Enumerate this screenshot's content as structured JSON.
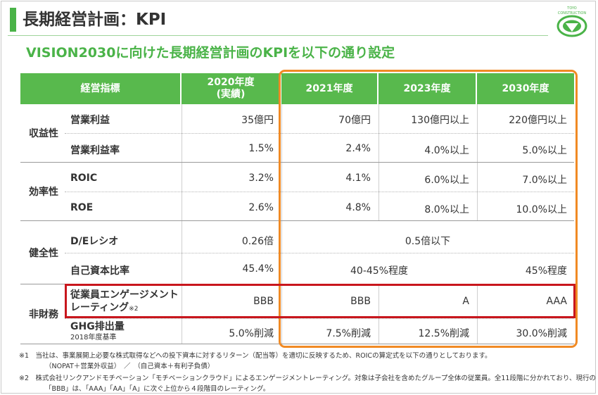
{
  "header": {
    "title": "長期経営計画：KPI",
    "logo_text": "TOYO CONSTRUCTION"
  },
  "subtitle": "VISION2030に向けた長期経営計画のKPIを以下の通り設定",
  "colors": {
    "green": "#58b94d",
    "orange": "#f08a24",
    "red": "#c8161d"
  },
  "table": {
    "headers": {
      "indicator": "経営指標",
      "y2020_line1": "2020年度",
      "y2020_line2": "(実績)",
      "y2021": "2021年度",
      "y2023": "2023年度",
      "y2030": "2030年度"
    },
    "categories": {
      "profitability": "収益性",
      "efficiency": "効率性",
      "soundness": "健全性",
      "nonfinancial": "非財務"
    },
    "rows": {
      "operating_profit": {
        "label": "営業利益",
        "y2020": "35億円",
        "y2021": "70億円",
        "y2023": "130億円以上",
        "y2030": "220億円以上"
      },
      "operating_margin": {
        "label": "営業利益率",
        "y2020": "1.5%",
        "y2021": "2.4%",
        "y2023": "4.0%以上",
        "y2030": "5.0%以上"
      },
      "roic": {
        "label": "ROIC",
        "y2020": "3.2%",
        "y2021": "4.1%",
        "y2023": "6.0%以上",
        "y2030": "7.0%以上"
      },
      "roe": {
        "label": "ROE",
        "y2020": "2.6%",
        "y2021": "4.8%",
        "y2023": "8.0%以上",
        "y2030": "10.0%以上"
      },
      "de_ratio": {
        "label": "D/Eレシオ",
        "y2020": "0.26倍",
        "future": "0.5倍以下"
      },
      "equity_ratio": {
        "label": "自己資本比率",
        "y2020": "45.4%",
        "y2021_2023": "40-45%程度",
        "y2030": "45%程度"
      },
      "engagement": {
        "label_line1": "従業員エンゲージメント",
        "label_line2": "レーティング",
        "label_sup": "※2",
        "y2020": "BBB",
        "y2021": "BBB",
        "y2023": "A",
        "y2030": "AAA"
      },
      "ghg": {
        "label": "GHG排出量",
        "sublabel": "2018年度基準",
        "y2020": "5.0%削減",
        "y2021": "7.5%削減",
        "y2023": "12.5%削減",
        "y2030": "30.0%削減"
      }
    }
  },
  "notes": {
    "n1_line1": "※1　当社は、事業展開上必要な株式取得などへの投下資本に対するリターン（配当等）を適切に反映するため、ROICの算定式を以下の通りとしております。",
    "n1_line2": "（NOPAT＋営業外収益）　／　（自己資本＋有利子負債）",
    "n2_line1": "※2　株式会社リンクアンドモチベーション「モチベーションクラウド」によるエンゲージメントレーティング。対象は子会社を含めたグループ全体の従業員。全11段階に分かれており、現行の",
    "n2_line2": "「BBB」は、「AAA」「AA」「A」に次ぐ上位から４段階目のレーティング。"
  }
}
